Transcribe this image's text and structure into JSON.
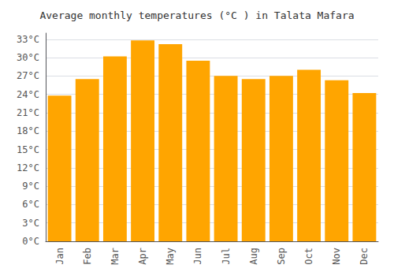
{
  "chart_data": {
    "type": "bar",
    "title": "Average monthly temperatures (°C ) in Talata Mafara",
    "categories": [
      "Jan",
      "Feb",
      "Mar",
      "Apr",
      "May",
      "Jun",
      "Jul",
      "Aug",
      "Sep",
      "Oct",
      "Nov",
      "Dec"
    ],
    "values": [
      23.8,
      26.5,
      30.2,
      32.8,
      32.2,
      29.5,
      27.0,
      26.5,
      27.0,
      28.0,
      26.3,
      24.2
    ],
    "color": "#FFA500",
    "ylim": [
      0,
      34
    ],
    "yticks": [
      {
        "value": 0,
        "label": "0°C"
      },
      {
        "value": 3,
        "label": "3°C"
      },
      {
        "value": 6,
        "label": "6°C"
      },
      {
        "value": 9,
        "label": "9°C"
      },
      {
        "value": 12,
        "label": "12°C"
      },
      {
        "value": 15,
        "label": "15°C"
      },
      {
        "value": 18,
        "label": "18°C"
      },
      {
        "value": 21,
        "label": "21°C"
      },
      {
        "value": 24,
        "label": "24°C"
      },
      {
        "value": 27,
        "label": "27°C"
      },
      {
        "value": 30,
        "label": "30°C"
      },
      {
        "value": 33,
        "label": "33°C"
      }
    ],
    "grid": true
  }
}
